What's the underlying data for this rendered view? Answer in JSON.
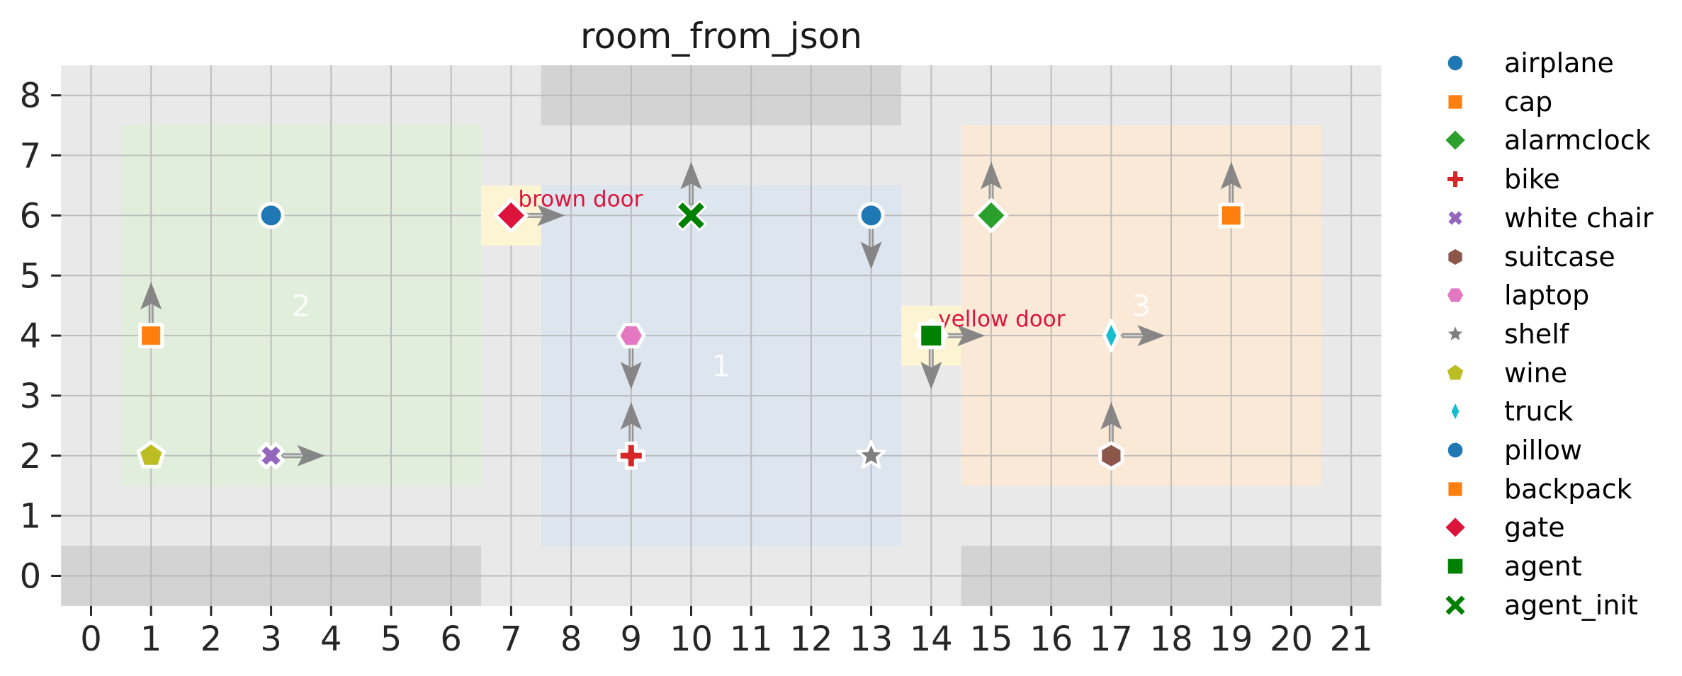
{
  "title": "room_from_json",
  "colors": {
    "figure_bg": "#ffffff",
    "plot_bg": "#e9e9e9",
    "wall": "#d3d3d3",
    "grid": "#b3b3b3",
    "tick_label": "#262626",
    "title_text": "#1a1a1a",
    "room_label": "#ffffff",
    "door_label": "#dc143c",
    "door_highlight": "#fdf4d3",
    "arrow_head": "#7f7f7f",
    "arrow_stem": "#8f8f8f",
    "arrow_stem_light": "#cfcfcf"
  },
  "chart_data": {
    "type": "scatter",
    "title": "room_from_json",
    "xlabel": "",
    "ylabel": "",
    "xlim": [
      -0.5,
      21.5
    ],
    "ylim": [
      -0.5,
      8.5
    ],
    "x_ticks": [
      0,
      1,
      2,
      3,
      4,
      5,
      6,
      7,
      8,
      9,
      10,
      11,
      12,
      13,
      14,
      15,
      16,
      17,
      18,
      19,
      20,
      21
    ],
    "y_ticks": [
      0,
      1,
      2,
      3,
      4,
      5,
      6,
      7,
      8
    ],
    "grid": true,
    "legend_position": "right-outside",
    "rooms": [
      {
        "label": "2",
        "x": [
          0.5,
          6.5
        ],
        "y": [
          1.5,
          7.5
        ],
        "fill": "#e2eedc",
        "label_pos": [
          3.5,
          4.5
        ]
      },
      {
        "label": "1",
        "x": [
          7.5,
          13.5
        ],
        "y": [
          0.5,
          6.5
        ],
        "fill": "#dde5ee",
        "label_pos": [
          10.5,
          3.5
        ]
      },
      {
        "label": "3",
        "x": [
          14.5,
          20.5
        ],
        "y": [
          1.5,
          7.5
        ],
        "fill": "#fbe9d8",
        "label_pos": [
          17.5,
          4.5
        ]
      }
    ],
    "walls": [
      {
        "x": [
          -0.5,
          6.5
        ],
        "y": [
          -0.5,
          0.5
        ]
      },
      {
        "x": [
          14.5,
          21.5
        ],
        "y": [
          -0.5,
          0.5
        ]
      },
      {
        "x": [
          7.5,
          13.5
        ],
        "y": [
          7.5,
          8.5
        ]
      }
    ],
    "doors": [
      {
        "label": "brown door",
        "x": 7,
        "y": 6,
        "marker": "diamond",
        "color": "#dc143c",
        "direction": "right",
        "highlight": {
          "x": [
            6.5,
            7.5
          ],
          "y": [
            5.5,
            6.5
          ]
        }
      },
      {
        "label": "yellow door",
        "x": 14,
        "y": 4,
        "marker": "diamond",
        "color": "#dc143c",
        "direction": "right",
        "highlight": {
          "x": [
            13.5,
            14.5
          ],
          "y": [
            3.5,
            4.5
          ]
        }
      }
    ],
    "objects": [
      {
        "name": "pillow",
        "x": 3,
        "y": 6,
        "marker": "circle",
        "color": "#1f77b4",
        "direction": null
      },
      {
        "name": "cap",
        "x": 1,
        "y": 4,
        "marker": "square",
        "color": "#ff7f0e",
        "direction": "up"
      },
      {
        "name": "wine",
        "x": 1,
        "y": 2,
        "marker": "pentagon",
        "color": "#bcbd22",
        "direction": null
      },
      {
        "name": "white chair",
        "x": 3,
        "y": 2,
        "marker": "x",
        "color": "#9467bd",
        "direction": "right"
      },
      {
        "name": "laptop",
        "x": 9,
        "y": 4,
        "marker": "hexagon_flat",
        "color": "#e377c2",
        "direction": "down"
      },
      {
        "name": "bike",
        "x": 9,
        "y": 2,
        "marker": "plus",
        "color": "#d62728",
        "direction": "up"
      },
      {
        "name": "shelf",
        "x": 13,
        "y": 2,
        "marker": "star",
        "color": "#7f7f7f",
        "direction": null
      },
      {
        "name": "airplane",
        "x": 13,
        "y": 6,
        "marker": "circle",
        "color": "#1f77b4",
        "direction": "down"
      },
      {
        "name": "alarmclock",
        "x": 15,
        "y": 6,
        "marker": "diamond",
        "color": "#2ca02c",
        "direction": "up"
      },
      {
        "name": "truck",
        "x": 17,
        "y": 4,
        "marker": "thin_diamond",
        "color": "#17becf",
        "direction": "right"
      },
      {
        "name": "suitcase",
        "x": 17,
        "y": 2,
        "marker": "hexagon_pointy",
        "color": "#8c564b",
        "direction": "up"
      },
      {
        "name": "backpack",
        "x": 19,
        "y": 6,
        "marker": "square",
        "color": "#ff7f0e",
        "direction": "up"
      },
      {
        "name": "agent",
        "x": 14,
        "y": 4,
        "marker": "square_large",
        "color": "#008000",
        "direction": "down"
      },
      {
        "name": "agent_init",
        "x": 10,
        "y": 6,
        "marker": "x_large",
        "color": "#008000",
        "direction": "up"
      }
    ],
    "legend": [
      {
        "label": "airplane",
        "marker": "circle",
        "color": "#1f77b4"
      },
      {
        "label": "cap",
        "marker": "square",
        "color": "#ff7f0e"
      },
      {
        "label": "alarmclock",
        "marker": "diamond",
        "color": "#2ca02c"
      },
      {
        "label": "bike",
        "marker": "plus",
        "color": "#d62728"
      },
      {
        "label": "white chair",
        "marker": "x",
        "color": "#9467bd"
      },
      {
        "label": "suitcase",
        "marker": "hexagon_pointy",
        "color": "#8c564b"
      },
      {
        "label": "laptop",
        "marker": "hexagon_flat",
        "color": "#e377c2"
      },
      {
        "label": "shelf",
        "marker": "star",
        "color": "#7f7f7f"
      },
      {
        "label": "wine",
        "marker": "pentagon",
        "color": "#bcbd22"
      },
      {
        "label": "truck",
        "marker": "thin_diamond",
        "color": "#17becf"
      },
      {
        "label": "pillow",
        "marker": "circle",
        "color": "#1f77b4"
      },
      {
        "label": "backpack",
        "marker": "square",
        "color": "#ff7f0e"
      },
      {
        "label": "gate",
        "marker": "diamond",
        "color": "#dc143c"
      },
      {
        "label": "agent",
        "marker": "square_large",
        "color": "#008000"
      },
      {
        "label": "agent_init",
        "marker": "x_large",
        "color": "#008000"
      }
    ]
  }
}
